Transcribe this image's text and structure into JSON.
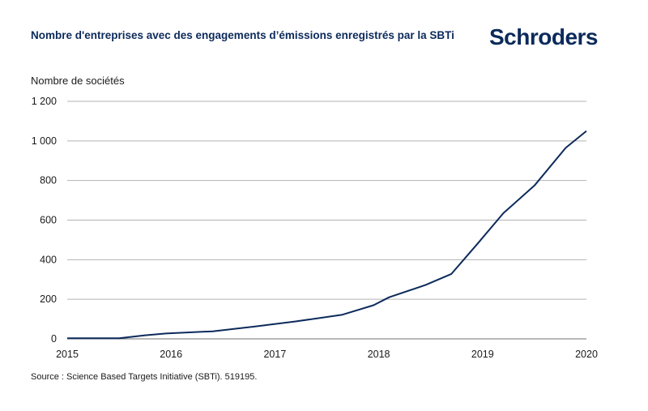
{
  "header": {
    "title": "Nombre d'entreprises avec des engagements d’émissions enregistrés par la SBTi",
    "logo_text": "Schroders"
  },
  "footer": {
    "source": "Source : Science Based Targets Initiative (SBTi). 519195."
  },
  "colors": {
    "line": "#0c2a5b",
    "grid": "#b3b3b3",
    "title": "#0c2a5b"
  },
  "chart_data": {
    "type": "line",
    "ylabel": "Nombre de sociétés",
    "xlim": [
      2015,
      2020
    ],
    "ylim": [
      0,
      1200
    ],
    "x_ticks": [
      2015,
      2016,
      2017,
      2018,
      2019,
      2020
    ],
    "y_ticks": [
      {
        "value": 0,
        "label": "0"
      },
      {
        "value": 200,
        "label": "200"
      },
      {
        "value": 400,
        "label": "400"
      },
      {
        "value": 600,
        "label": "600"
      },
      {
        "value": 800,
        "label": "800"
      },
      {
        "value": 1000,
        "label": "1 000"
      },
      {
        "value": 1200,
        "label": "1 200"
      }
    ],
    "grid": "horizontal",
    "series": [
      {
        "points": [
          [
            2015.0,
            3
          ],
          [
            2015.5,
            3
          ],
          [
            2015.75,
            18
          ],
          [
            2015.95,
            27
          ],
          [
            2016.4,
            38
          ],
          [
            2016.8,
            62
          ],
          [
            2017.2,
            88
          ],
          [
            2017.65,
            122
          ],
          [
            2017.95,
            170
          ],
          [
            2018.1,
            210
          ],
          [
            2018.45,
            272
          ],
          [
            2018.7,
            328
          ],
          [
            2018.95,
            480
          ],
          [
            2019.2,
            635
          ],
          [
            2019.5,
            775
          ],
          [
            2019.8,
            965
          ],
          [
            2020.0,
            1050
          ]
        ]
      }
    ]
  }
}
